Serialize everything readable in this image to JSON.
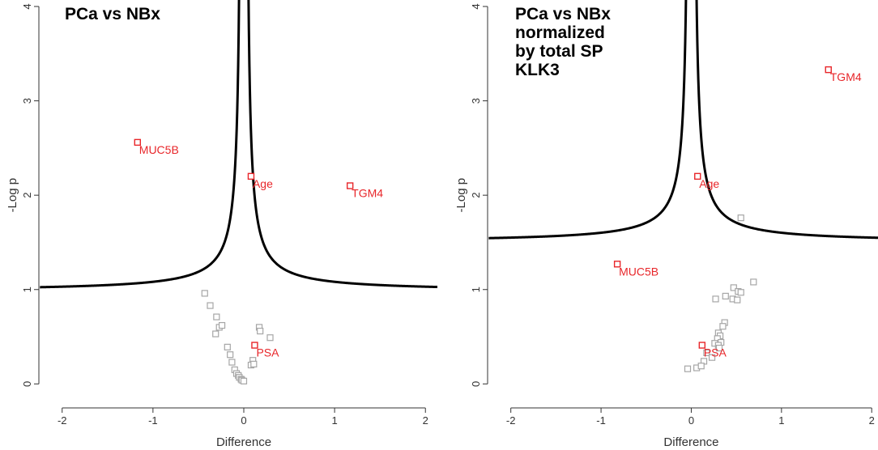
{
  "colors": {
    "highlight": "#e8262a",
    "other": "#a6a6a6",
    "curve": "#000000",
    "axis": "#333333",
    "text": "#333333"
  },
  "chart_data": [
    {
      "type": "scatter",
      "title": "PCa vs NBx",
      "xlabel": "Difference",
      "ylabel": "-Log p",
      "xlim": [
        -2.06,
        1.98
      ],
      "ylim": [
        -0.1,
        4.0
      ],
      "xticks": [
        "-2",
        "-1",
        "0",
        "1",
        "2"
      ],
      "yticks": [
        "0",
        "1",
        "2",
        "3",
        "4"
      ],
      "threshold_curve": {
        "s0": 0.1,
        "asymptote": 0.98
      },
      "highlighted": [
        {
          "label": "MUC5B",
          "x": -1.17,
          "y": 2.56
        },
        {
          "label": "Age",
          "x": 0.08,
          "y": 2.2
        },
        {
          "label": "TGM4",
          "x": 1.17,
          "y": 2.1
        },
        {
          "label": "PSA",
          "x": 0.12,
          "y": 0.41
        }
      ],
      "others": [
        {
          "x": -0.43,
          "y": 0.96
        },
        {
          "x": -0.37,
          "y": 0.83
        },
        {
          "x": -0.3,
          "y": 0.71
        },
        {
          "x": -0.27,
          "y": 0.6
        },
        {
          "x": -0.24,
          "y": 0.62
        },
        {
          "x": -0.31,
          "y": 0.53
        },
        {
          "x": -0.18,
          "y": 0.39
        },
        {
          "x": -0.15,
          "y": 0.31
        },
        {
          "x": -0.13,
          "y": 0.23
        },
        {
          "x": -0.1,
          "y": 0.15
        },
        {
          "x": -0.08,
          "y": 0.11
        },
        {
          "x": -0.06,
          "y": 0.09
        },
        {
          "x": -0.05,
          "y": 0.07
        },
        {
          "x": -0.03,
          "y": 0.05
        },
        {
          "x": -0.02,
          "y": 0.04
        },
        {
          "x": 0.0,
          "y": 0.03
        },
        {
          "x": 0.17,
          "y": 0.6
        },
        {
          "x": 0.18,
          "y": 0.56
        },
        {
          "x": 0.29,
          "y": 0.49
        },
        {
          "x": 0.1,
          "y": 0.25
        },
        {
          "x": 0.08,
          "y": 0.2
        },
        {
          "x": 0.11,
          "y": 0.21
        }
      ]
    },
    {
      "type": "scatter",
      "title": "PCa vs NBx\nnormalized\nby total SP\nKLK3",
      "xlabel": "Difference",
      "ylabel": "-Log p",
      "xlim": [
        -2.06,
        1.98
      ],
      "ylim": [
        -0.1,
        4.0
      ],
      "xticks": [
        "-2",
        "-1",
        "0",
        "1",
        "2"
      ],
      "yticks": [
        "0",
        "1",
        "2",
        "3",
        "4"
      ],
      "threshold_curve": {
        "s0": 0.1,
        "asymptote": 1.5
      },
      "highlighted": [
        {
          "label": "TGM4",
          "x": 1.52,
          "y": 3.33
        },
        {
          "label": "Age",
          "x": 0.07,
          "y": 2.2
        },
        {
          "label": "MUC5B",
          "x": -0.82,
          "y": 1.27
        },
        {
          "label": "PSA",
          "x": 0.12,
          "y": 0.41
        }
      ],
      "others": [
        {
          "x": 0.55,
          "y": 1.76
        },
        {
          "x": 0.69,
          "y": 1.08
        },
        {
          "x": 0.47,
          "y": 1.02
        },
        {
          "x": 0.52,
          "y": 0.98
        },
        {
          "x": 0.55,
          "y": 0.97
        },
        {
          "x": 0.38,
          "y": 0.93
        },
        {
          "x": 0.46,
          "y": 0.9
        },
        {
          "x": 0.51,
          "y": 0.89
        },
        {
          "x": 0.27,
          "y": 0.9
        },
        {
          "x": 0.37,
          "y": 0.65
        },
        {
          "x": 0.35,
          "y": 0.61
        },
        {
          "x": 0.3,
          "y": 0.54
        },
        {
          "x": 0.32,
          "y": 0.51
        },
        {
          "x": 0.29,
          "y": 0.48
        },
        {
          "x": 0.33,
          "y": 0.44
        },
        {
          "x": 0.26,
          "y": 0.43
        },
        {
          "x": 0.3,
          "y": 0.41
        },
        {
          "x": 0.31,
          "y": 0.38
        },
        {
          "x": 0.17,
          "y": 0.33
        },
        {
          "x": 0.23,
          "y": 0.28
        },
        {
          "x": 0.14,
          "y": 0.24
        },
        {
          "x": 0.06,
          "y": 0.17
        },
        {
          "x": 0.11,
          "y": 0.19
        },
        {
          "x": -0.04,
          "y": 0.16
        }
      ]
    }
  ]
}
